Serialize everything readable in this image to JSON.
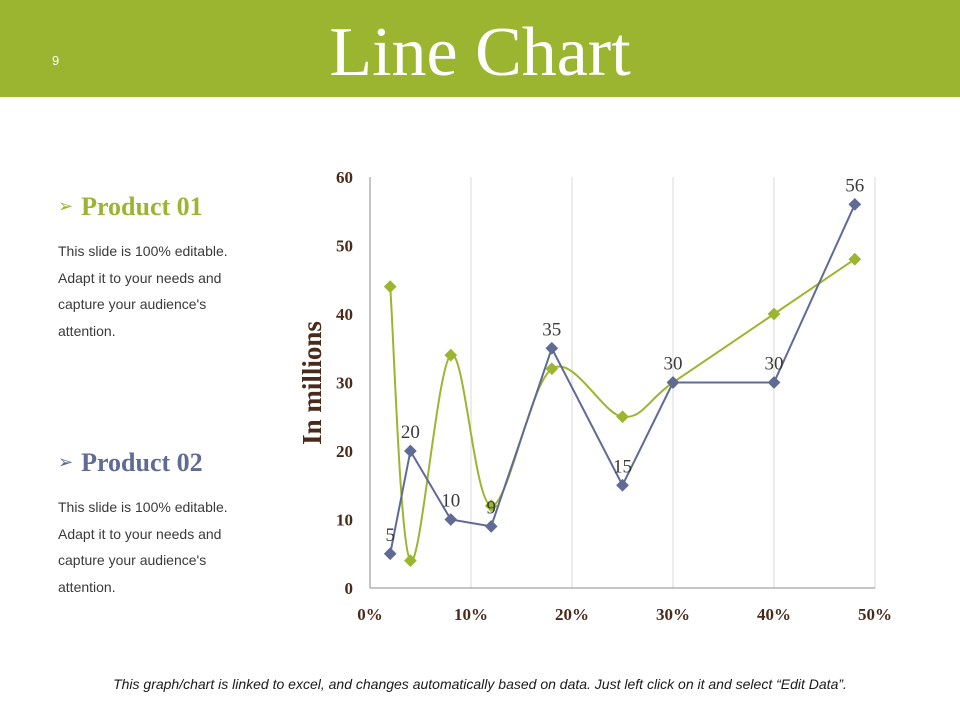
{
  "slide": {
    "page_number": "9",
    "title": "Line Chart",
    "footer": "This graph/chart is linked to excel, and changes automatically based on data. Just left click on it and select “Edit Data”."
  },
  "products": [
    {
      "name": "Product 01",
      "description": "This slide is 100% editable. Adapt it to your needs and capture your audience's attention.",
      "color": "#9cb530"
    },
    {
      "name": "Product 02",
      "description": "This slide is 100% editable. Adapt it to your needs and capture your audience's attention.",
      "color": "#5f6b94"
    }
  ],
  "chart_data": {
    "type": "scatter",
    "title": "",
    "xlabel": "",
    "ylabel": "In millions",
    "xlim": [
      0,
      0.5
    ],
    "ylim": [
      0,
      60
    ],
    "x_ticks": [
      "0%",
      "10%",
      "20%",
      "30%",
      "40%",
      "50%"
    ],
    "y_ticks": [
      "0",
      "10",
      "20",
      "30",
      "40",
      "50",
      "60"
    ],
    "grid": "vertical",
    "series": [
      {
        "name": "Product 01",
        "color": "#9cb530",
        "smooth": true,
        "x": [
          0.02,
          0.04,
          0.08,
          0.12,
          0.18,
          0.25,
          0.3,
          0.4,
          0.48
        ],
        "y": [
          44,
          4,
          34,
          12,
          32,
          25,
          30,
          40,
          48
        ],
        "labels": null
      },
      {
        "name": "Product 02",
        "color": "#5f6b94",
        "smooth": false,
        "x": [
          0.02,
          0.04,
          0.08,
          0.12,
          0.18,
          0.25,
          0.3,
          0.4,
          0.48
        ],
        "y": [
          5,
          20,
          10,
          9,
          35,
          15,
          30,
          30,
          56
        ],
        "labels": [
          "5",
          "20",
          "10",
          "9",
          "35",
          "15",
          "30",
          "30",
          "56"
        ]
      }
    ]
  }
}
